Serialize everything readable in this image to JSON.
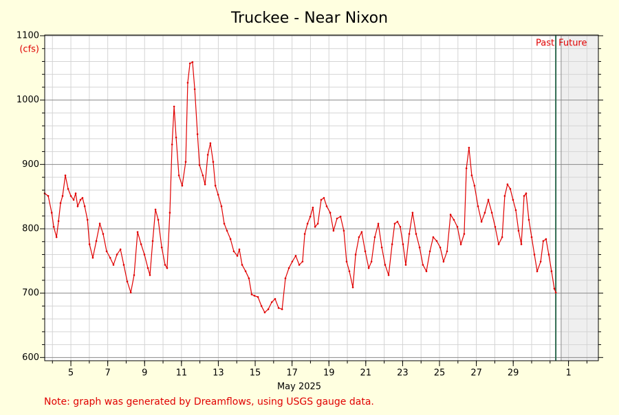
{
  "chart_data": {
    "type": "line",
    "title": "Truckee - Near Nixon",
    "y_label": "(cfs)",
    "x_label": "May 2025",
    "note": "Note: graph was generated by Dreamflows, using USGS gauge data.",
    "past_label": "Past",
    "future_label": "Future",
    "now_x": 31.31,
    "future_start_x": 31.6,
    "xlim": [
      3.58,
      33.62
    ],
    "ylim": [
      595,
      1100
    ],
    "xticks": [
      5,
      7,
      9,
      11,
      13,
      15,
      17,
      19,
      21,
      23,
      25,
      27,
      29,
      {
        "value": 32,
        "label": "1"
      }
    ],
    "x_minor_ticks": [
      4,
      5,
      6,
      7,
      8,
      9,
      10,
      11,
      12,
      13,
      14,
      15,
      16,
      17,
      18,
      19,
      20,
      21,
      22,
      23,
      24,
      25,
      26,
      27,
      28,
      29,
      30,
      31,
      32,
      33
    ],
    "yticks": [
      600,
      700,
      800,
      900,
      1000,
      1100
    ],
    "y_minor_ticks": [
      620,
      640,
      660,
      680,
      720,
      740,
      760,
      780,
      820,
      840,
      860,
      880,
      920,
      940,
      960,
      980,
      1020,
      1040,
      1060,
      1080
    ],
    "grid": true,
    "series": [
      {
        "name": "Flow",
        "color": "#e00000",
        "x": [
          3.58,
          3.77,
          3.96,
          4.07,
          4.22,
          4.33,
          4.44,
          4.55,
          4.7,
          4.85,
          5.0,
          5.15,
          5.26,
          5.37,
          5.52,
          5.63,
          5.75,
          5.9,
          6.01,
          6.19,
          6.38,
          6.57,
          6.75,
          6.94,
          7.13,
          7.31,
          7.5,
          7.69,
          7.87,
          8.06,
          8.25,
          8.43,
          8.62,
          8.81,
          8.99,
          9.18,
          9.29,
          9.44,
          9.59,
          9.74,
          9.93,
          10.11,
          10.22,
          10.37,
          10.49,
          10.6,
          10.71,
          10.86,
          11.04,
          11.23,
          11.34,
          11.46,
          11.6,
          11.72,
          11.87,
          11.98,
          12.16,
          12.28,
          12.43,
          12.57,
          12.72,
          12.84,
          12.99,
          13.17,
          13.32,
          13.47,
          13.66,
          13.84,
          14.03,
          14.14,
          14.29,
          14.48,
          14.66,
          14.81,
          14.96,
          15.15,
          15.34,
          15.52,
          15.71,
          15.9,
          16.08,
          16.27,
          16.46,
          16.64,
          16.83,
          17.01,
          17.2,
          17.39,
          17.57,
          17.69,
          17.84,
          17.99,
          18.13,
          18.25,
          18.4,
          18.58,
          18.73,
          18.88,
          19.07,
          19.25,
          19.44,
          19.63,
          19.81,
          19.96,
          20.11,
          20.3,
          20.45,
          20.63,
          20.78,
          20.97,
          21.16,
          21.31,
          21.49,
          21.68,
          21.87,
          22.05,
          22.24,
          22.43,
          22.57,
          22.72,
          22.87,
          23.02,
          23.17,
          23.36,
          23.54,
          23.73,
          23.92,
          24.1,
          24.29,
          24.48,
          24.66,
          24.85,
          25.04,
          25.22,
          25.41,
          25.6,
          25.78,
          25.97,
          26.16,
          26.34,
          26.46,
          26.6,
          26.75,
          26.9,
          27.09,
          27.28,
          27.46,
          27.65,
          27.84,
          28.02,
          28.21,
          28.4,
          28.54,
          28.69,
          28.84,
          28.99,
          29.14,
          29.29,
          29.44,
          29.59,
          29.7,
          29.85,
          30.0,
          30.15,
          30.3,
          30.49,
          30.63,
          30.78,
          30.93,
          31.08,
          31.23,
          31.31
        ],
        "values": [
          855,
          851,
          825,
          803,
          787,
          812,
          840,
          851,
          883,
          862,
          851,
          845,
          855,
          835,
          845,
          848,
          835,
          814,
          776,
          755,
          781,
          808,
          792,
          765,
          755,
          744,
          760,
          768,
          744,
          718,
          701,
          728,
          795,
          776,
          760,
          739,
          728,
          781,
          830,
          814,
          771,
          744,
          739,
          825,
          931,
          990,
          942,
          883,
          867,
          904,
          1027,
          1057,
          1059,
          1017,
          947,
          899,
          883,
          869,
          915,
          933,
          904,
          867,
          853,
          835,
          808,
          797,
          784,
          765,
          758,
          768,
          744,
          734,
          723,
          698,
          696,
          694,
          680,
          670,
          675,
          686,
          691,
          677,
          675,
          723,
          739,
          749,
          758,
          744,
          749,
          792,
          808,
          819,
          833,
          803,
          808,
          845,
          848,
          835,
          825,
          797,
          816,
          819,
          797,
          749,
          734,
          709,
          760,
          787,
          795,
          765,
          739,
          749,
          787,
          808,
          771,
          744,
          728,
          776,
          808,
          811,
          803,
          776,
          744,
          792,
          825,
          792,
          771,
          744,
          734,
          765,
          787,
          781,
          771,
          749,
          765,
          822,
          814,
          803,
          776,
          792,
          894,
          926,
          883,
          867,
          835,
          811,
          825,
          845,
          825,
          803,
          776,
          787,
          851,
          869,
          862,
          845,
          829,
          797,
          776,
          851,
          855,
          814,
          787,
          760,
          734,
          749,
          781,
          784,
          760,
          734,
          707,
          701
        ]
      }
    ]
  }
}
